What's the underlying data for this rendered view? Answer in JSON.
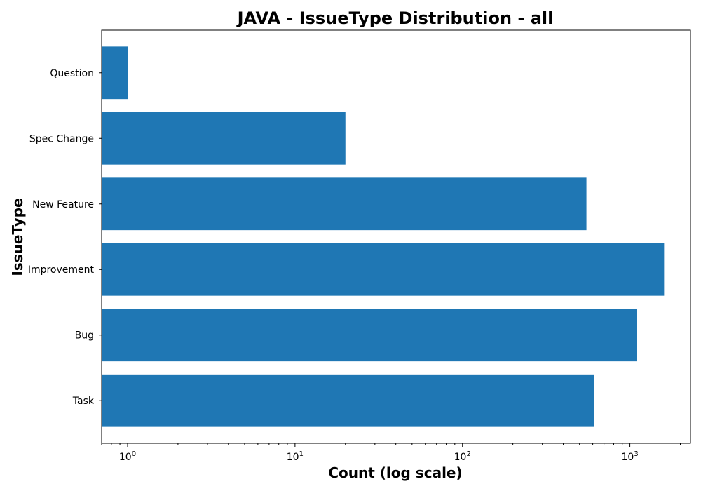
{
  "chart_data": {
    "type": "bar",
    "orientation": "horizontal",
    "title": "JAVA - IssueType Distribution - all",
    "xlabel": "Count (log scale)",
    "ylabel": "IssueType",
    "x_scale": "log",
    "xlim": [
      0.7,
      2300
    ],
    "categories": [
      "Task",
      "Bug",
      "Improvement",
      "New Feature",
      "Spec Change",
      "Question"
    ],
    "values": [
      610,
      1100,
      1600,
      550,
      20,
      1
    ],
    "x_ticks": [
      {
        "base": "10",
        "exp": "0",
        "value": 1
      },
      {
        "base": "10",
        "exp": "1",
        "value": 10
      },
      {
        "base": "10",
        "exp": "2",
        "value": 100
      },
      {
        "base": "10",
        "exp": "3",
        "value": 1000
      }
    ],
    "bar_color": "#1f77b4",
    "grid": false,
    "legend": "none"
  }
}
